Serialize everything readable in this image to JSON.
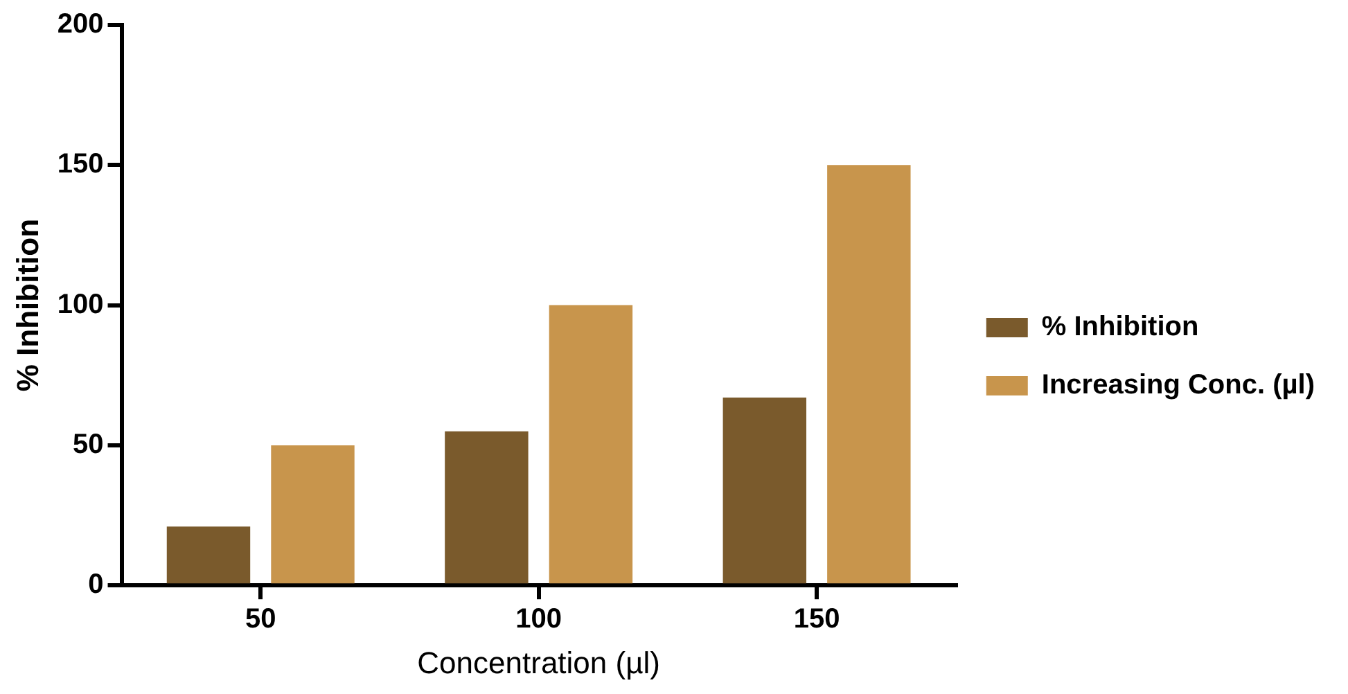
{
  "chart_data": {
    "type": "bar",
    "xlabel": "Concentration (µl)",
    "ylabel": "% Inhibition",
    "categories": [
      "50",
      "100",
      "150"
    ],
    "series": [
      {
        "name": "% Inhibition",
        "color": "#7a5a2c",
        "values": [
          21,
          55,
          67
        ]
      },
      {
        "name": "Increasing Conc. (µl)",
        "color": "#c8954c",
        "values": [
          50,
          100,
          150
        ]
      }
    ],
    "ylim": [
      0,
      200
    ],
    "yticks": [
      0,
      50,
      100,
      150,
      200
    ],
    "grid": false,
    "legend": "right"
  }
}
